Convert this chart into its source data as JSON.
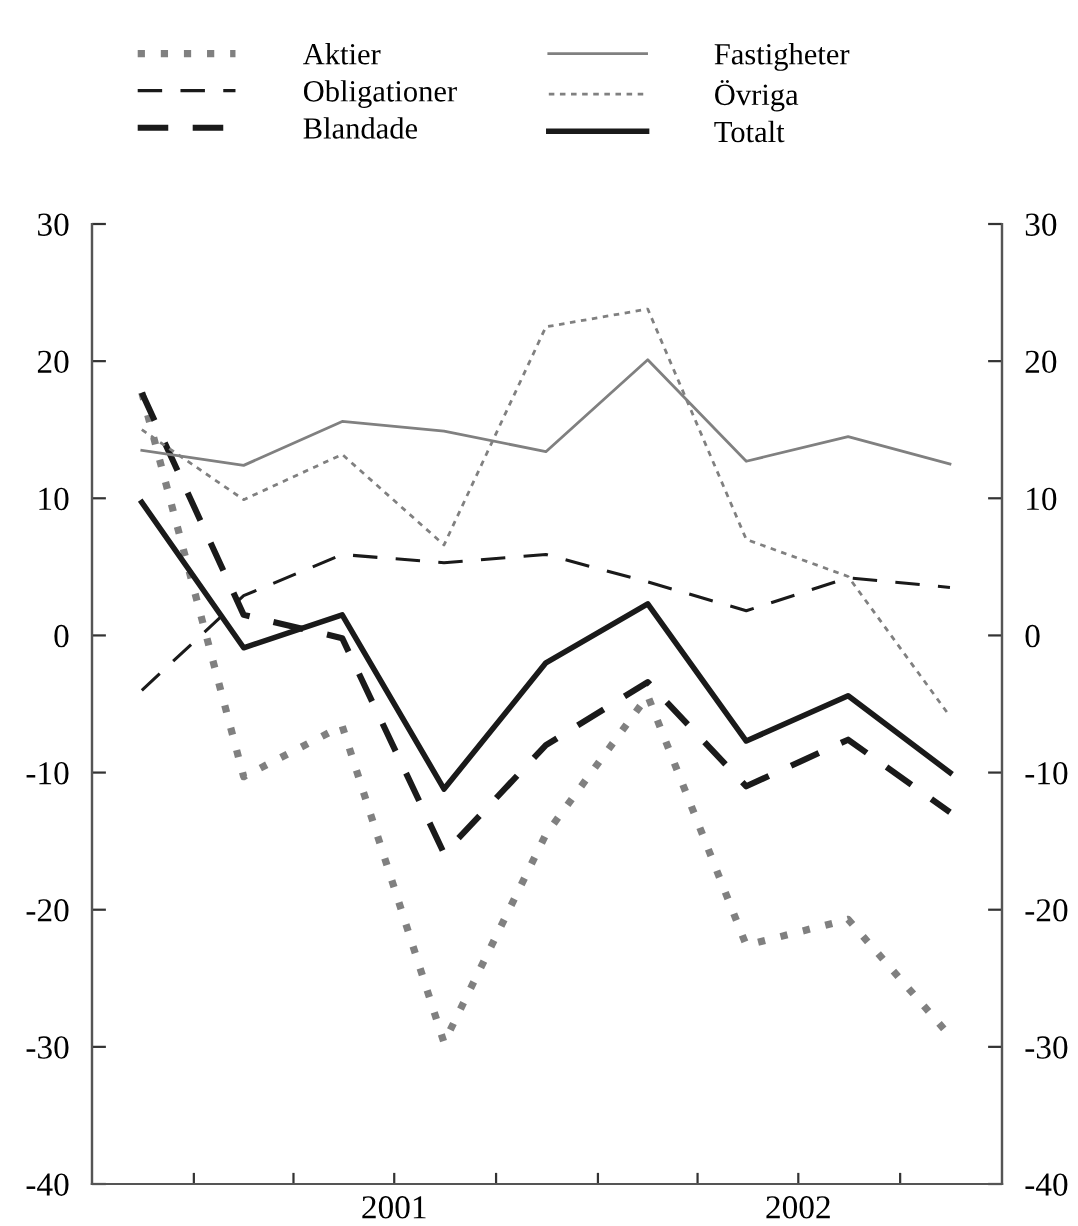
{
  "chart_data": {
    "type": "line",
    "x": [
      "2000-11-15",
      "2001-02-15",
      "2001-05-15",
      "2001-08-15",
      "2001-11-15",
      "2002-02-15",
      "2002-05-15",
      "2002-08-15",
      "2002-11-15"
    ],
    "xlim": [
      "2000-10-01",
      "2003-01-01"
    ],
    "xticks": [
      {
        "value": "2001-01-01",
        "label": null
      },
      {
        "value": "2001-04-01",
        "label": null
      },
      {
        "value": "2001-07-01",
        "label": "2001"
      },
      {
        "value": "2001-10-01",
        "label": null
      },
      {
        "value": "2002-01-01",
        "label": null
      },
      {
        "value": "2002-04-01",
        "label": null
      },
      {
        "value": "2002-07-01",
        "label": "2002"
      },
      {
        "value": "2002-10-01",
        "label": null
      }
    ],
    "ylim": [
      -40,
      30
    ],
    "yticks": [
      -40,
      -30,
      -20,
      -10,
      0,
      10,
      20,
      30
    ],
    "y2lim": [
      -40,
      30
    ],
    "y2ticks": [
      -40,
      -30,
      -20,
      -10,
      0,
      10,
      20,
      30
    ],
    "grid": false,
    "legend": "top",
    "marker": "none",
    "series": [
      {
        "name": "Aktier",
        "color": "#808080",
        "line_style": "dotted",
        "values": [
          17.7,
          -10.3,
          -6.6,
          -29.7,
          -14.5,
          -4.4,
          -22.6,
          -20.7,
          -29.2
        ]
      },
      {
        "name": "Obligationer",
        "color": "#1a1a1a",
        "line_style": "dashed",
        "values": [
          -4.0,
          2.9,
          5.9,
          5.3,
          5.9,
          3.9,
          1.8,
          4.2,
          3.5
        ]
      },
      {
        "name": "Blandade",
        "color": "#1a1a1a",
        "line_style": "dashed",
        "values": [
          17.7,
          1.5,
          -0.2,
          -15.9,
          -8.0,
          -3.4,
          -11.0,
          -7.6,
          -12.9
        ]
      },
      {
        "name": "Fastigheter",
        "color": "#808080",
        "line_style": "solid",
        "values": [
          13.5,
          12.4,
          15.6,
          14.9,
          13.4,
          20.1,
          12.7,
          14.5,
          12.5
        ]
      },
      {
        "name": "Övriga",
        "color": "#808080",
        "line_style": "dashed",
        "values": [
          15.0,
          9.9,
          13.2,
          6.6,
          22.5,
          23.8,
          7.0,
          4.3,
          -5.9
        ]
      },
      {
        "name": "Totalt",
        "color": "#1a1a1a",
        "line_style": "solid",
        "values": [
          9.7,
          -0.9,
          1.5,
          -11.2,
          -2.0,
          2.3,
          -7.7,
          -4.4,
          -10.0
        ]
      }
    ]
  }
}
